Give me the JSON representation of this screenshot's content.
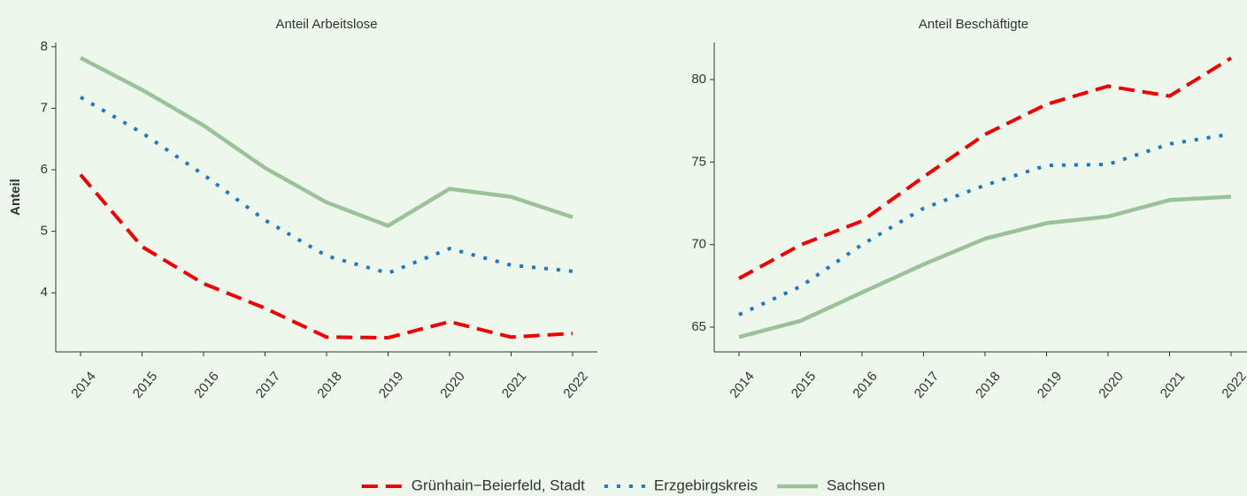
{
  "chart_data": [
    {
      "type": "line",
      "title": "Anteil Arbeitslose",
      "ylabel": "Anteil",
      "categories": [
        "2014",
        "2015",
        "2016",
        "2017",
        "2018",
        "2019",
        "2020",
        "2021",
        "2022"
      ],
      "series": [
        {
          "name": "Grünhain−Beierfeld, Stadt",
          "color": "#ee0000",
          "linetype": "dashed",
          "values": [
            5.92,
            4.75,
            4.15,
            3.75,
            3.28,
            3.27,
            3.53,
            3.28,
            3.34
          ]
        },
        {
          "name": "Erzgebirgskreis",
          "color": "#1f78c8",
          "linetype": "dotted",
          "values": [
            7.18,
            6.6,
            5.92,
            5.18,
            4.6,
            4.32,
            4.72,
            4.45,
            4.35
          ]
        },
        {
          "name": "Sachsen",
          "color": "#9cc29c",
          "linetype": "solid",
          "values": [
            7.82,
            7.3,
            6.72,
            6.03,
            5.47,
            5.09,
            5.69,
            5.56,
            5.23
          ]
        }
      ],
      "ylim": [
        3.04,
        8.07
      ],
      "yticks": [
        4,
        5,
        6,
        7,
        8
      ]
    },
    {
      "type": "line",
      "title": "Anteil Beschäftigte",
      "categories": [
        "2014",
        "2015",
        "2016",
        "2017",
        "2018",
        "2019",
        "2020",
        "2021",
        "2022"
      ],
      "series": [
        {
          "color": "#ee0000",
          "linetype": "dashed",
          "values": [
            67.95,
            69.98,
            71.43,
            74.1,
            76.68,
            78.5,
            79.6,
            79.0,
            81.3
          ]
        },
        {
          "color": "#1f78c8",
          "linetype": "dotted",
          "values": [
            65.75,
            67.46,
            70.0,
            72.2,
            73.6,
            74.8,
            74.86,
            76.1,
            76.7
          ]
        },
        {
          "color": "#9cc29c",
          "linetype": "solid",
          "values": [
            64.4,
            65.38,
            67.1,
            68.8,
            70.36,
            71.3,
            71.7,
            72.7,
            72.9
          ]
        }
      ],
      "ylim": [
        63.5,
        82.25
      ],
      "yticks": [
        65,
        70,
        75,
        80
      ]
    }
  ]
}
